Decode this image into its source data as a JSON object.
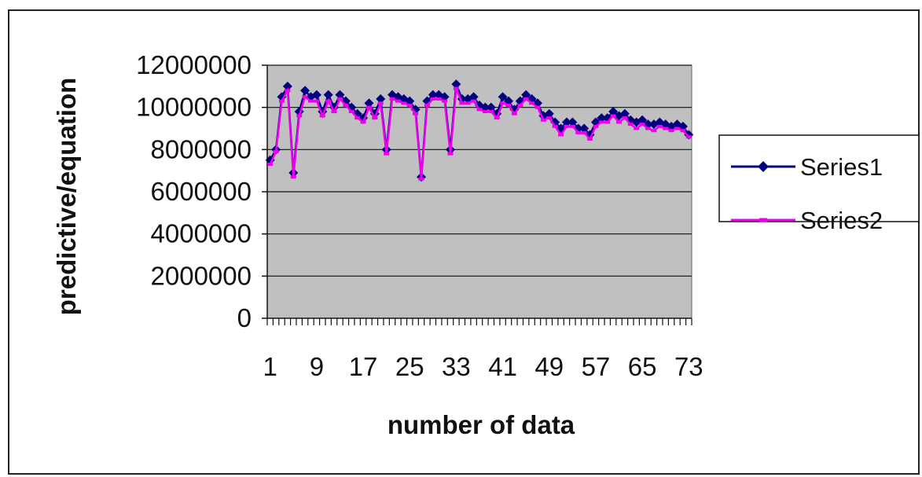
{
  "chart_data": {
    "type": "line",
    "title": "",
    "xlabel": "number of data",
    "ylabel": "predictive/equation",
    "x": [
      1,
      2,
      3,
      4,
      5,
      6,
      7,
      8,
      9,
      10,
      11,
      12,
      13,
      14,
      15,
      16,
      17,
      18,
      19,
      20,
      21,
      22,
      23,
      24,
      25,
      26,
      27,
      28,
      29,
      30,
      31,
      32,
      33,
      34,
      35,
      36,
      37,
      38,
      39,
      40,
      41,
      42,
      43,
      44,
      45,
      46,
      47,
      48,
      49,
      50,
      51,
      52,
      53,
      54,
      55,
      56,
      57,
      58,
      59,
      60,
      61,
      62,
      63,
      64,
      65,
      66,
      67,
      68,
      69,
      70,
      71,
      72,
      73
    ],
    "x_tick_labels": [
      "1",
      "9",
      "17",
      "25",
      "33",
      "41",
      "49",
      "57",
      "65",
      "73"
    ],
    "y_tick_labels": [
      "0",
      "2000000",
      "4000000",
      "6000000",
      "8000000",
      "10000000",
      "12000000"
    ],
    "ylim": [
      0,
      12000000
    ],
    "grid": true,
    "legend_position": "right",
    "plot_background": "#c0c0c0",
    "series": [
      {
        "name": "Series1",
        "color": "#000080",
        "values": [
          7500000,
          8000000,
          10500000,
          11000000,
          6900000,
          9800000,
          10800000,
          10500000,
          10600000,
          9800000,
          10600000,
          10000000,
          10600000,
          10300000,
          10000000,
          9700000,
          9500000,
          10200000,
          9700000,
          10400000,
          8000000,
          10600000,
          10500000,
          10400000,
          10300000,
          9900000,
          6700000,
          10300000,
          10600000,
          10600000,
          10500000,
          8000000,
          11100000,
          10400000,
          10400000,
          10500000,
          10100000,
          10000000,
          10000000,
          9700000,
          10500000,
          10300000,
          9900000,
          10300000,
          10600000,
          10400000,
          10200000,
          9600000,
          9700000,
          9300000,
          9000000,
          9300000,
          9300000,
          9000000,
          9000000,
          8700000,
          9300000,
          9500000,
          9500000,
          9800000,
          9600000,
          9700000,
          9400000,
          9300000,
          9400000,
          9200000,
          9200000,
          9300000,
          9200000,
          9100000,
          9200000,
          9100000,
          8700000
        ]
      },
      {
        "name": "Series2",
        "color": "#ee00ee",
        "values": [
          7300000,
          7900000,
          10300000,
          10800000,
          6700000,
          9600000,
          10500000,
          10300000,
          10300000,
          9600000,
          10300000,
          9800000,
          10400000,
          10100000,
          9800000,
          9500000,
          9300000,
          10000000,
          9500000,
          10200000,
          7800000,
          10400000,
          10300000,
          10200000,
          10100000,
          9700000,
          6600000,
          10100000,
          10400000,
          10400000,
          10300000,
          7800000,
          10900000,
          10200000,
          10200000,
          10300000,
          9900000,
          9800000,
          9800000,
          9500000,
          10200000,
          10100000,
          9700000,
          10100000,
          10400000,
          10200000,
          10000000,
          9400000,
          9500000,
          9100000,
          8700000,
          9100000,
          9100000,
          8800000,
          8800000,
          8500000,
          9100000,
          9300000,
          9300000,
          9600000,
          9300000,
          9500000,
          9200000,
          9000000,
          9200000,
          9000000,
          8900000,
          9100000,
          9000000,
          8900000,
          9000000,
          8900000,
          8600000
        ]
      }
    ]
  }
}
